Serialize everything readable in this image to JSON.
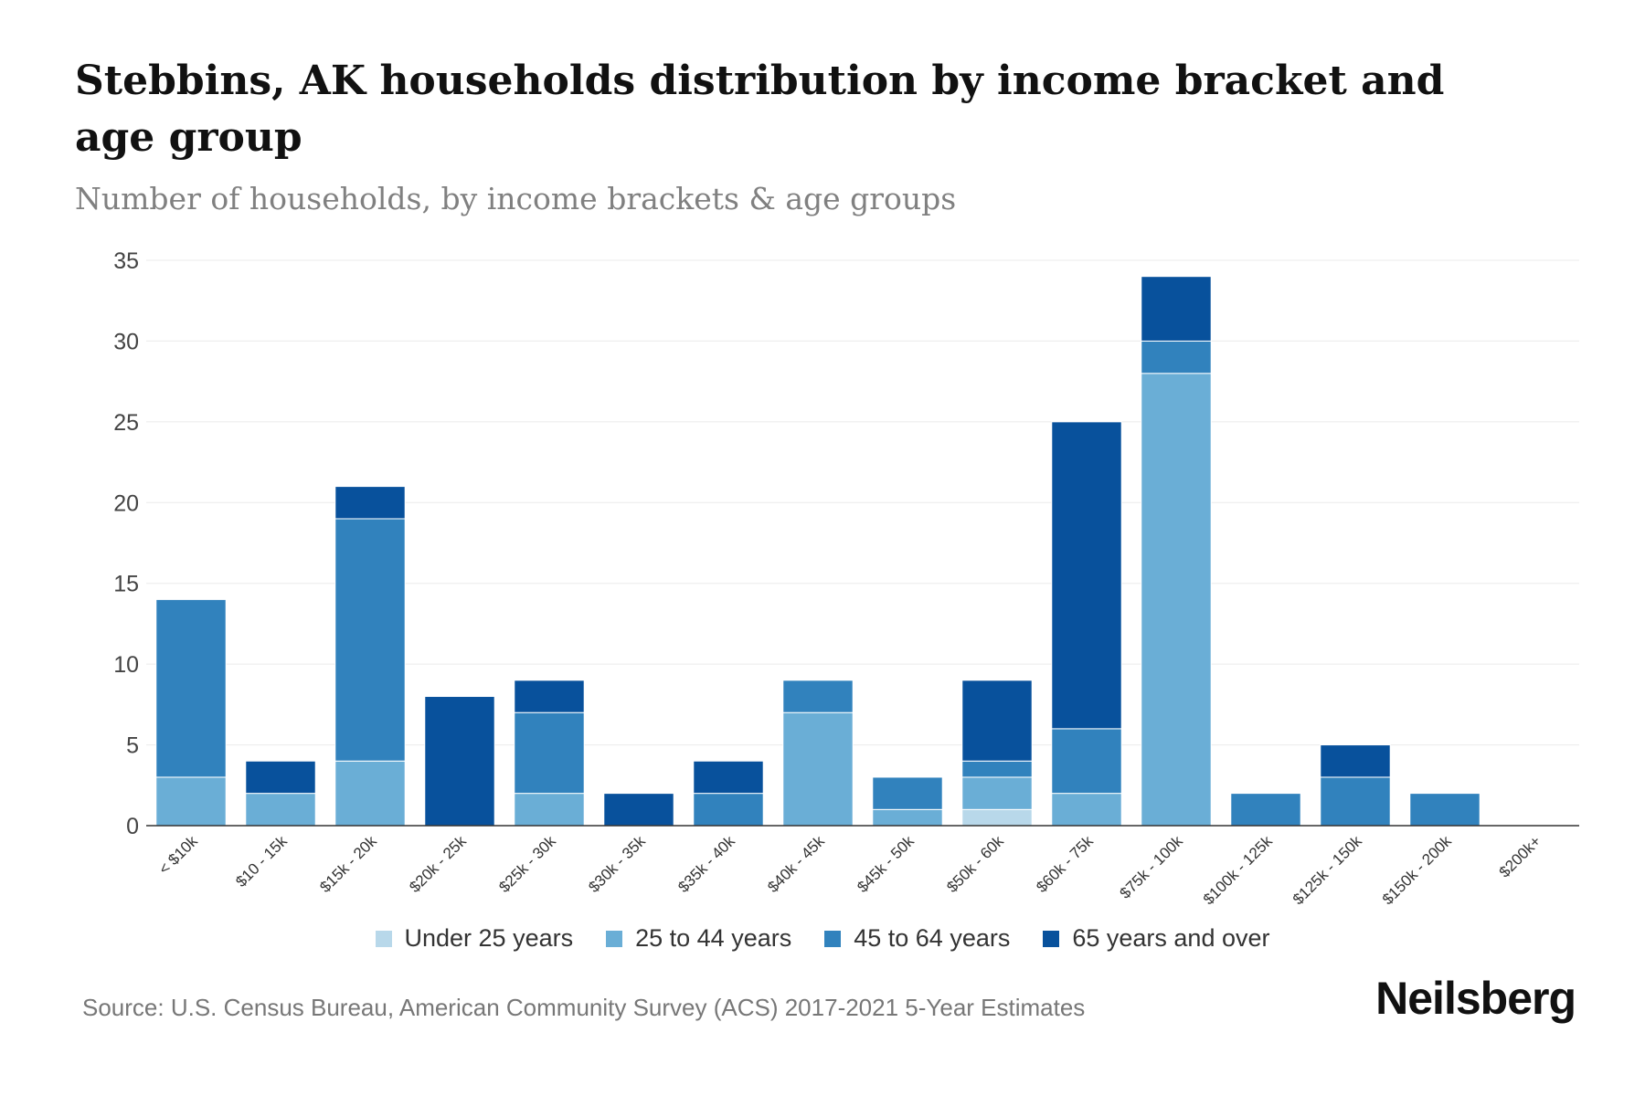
{
  "chart_data": {
    "type": "bar",
    "stacked": true,
    "title": "Stebbins, AK households distribution by income bracket and age group",
    "subtitle": "Number of households, by income brackets & age groups",
    "xlabel": "",
    "ylabel": "",
    "ylim": [
      0,
      35
    ],
    "yticks": [
      0,
      5,
      10,
      15,
      20,
      25,
      30,
      35
    ],
    "grid": true,
    "legend_position": "bottom",
    "categories": [
      "< $10k",
      "$10 - 15k",
      "$15k - 20k",
      "$20k - 25k",
      "$25k - 30k",
      "$30k - 35k",
      "$35k - 40k",
      "$40k - 45k",
      "$45k - 50k",
      "$50k - 60k",
      "$60k - 75k",
      "$75k - 100k",
      "$100k - 125k",
      "$125k - 150k",
      "$150k - 200k",
      "$200k+"
    ],
    "series": [
      {
        "name": "Under 25 years",
        "color": "#b8d8ea",
        "values": [
          0,
          0,
          0,
          0,
          0,
          0,
          0,
          0,
          0,
          1,
          0,
          0,
          0,
          0,
          0,
          0
        ]
      },
      {
        "name": "25 to 44 years",
        "color": "#6aaed6",
        "values": [
          3,
          2,
          4,
          0,
          2,
          0,
          0,
          7,
          1,
          2,
          2,
          28,
          0,
          0,
          0,
          0
        ]
      },
      {
        "name": "45 to 64 years",
        "color": "#3182bd",
        "values": [
          11,
          0,
          15,
          0,
          5,
          0,
          2,
          2,
          2,
          1,
          4,
          2,
          2,
          3,
          2,
          0
        ]
      },
      {
        "name": "65 years and over",
        "color": "#08519c",
        "values": [
          0,
          2,
          2,
          8,
          2,
          2,
          2,
          0,
          0,
          5,
          19,
          4,
          0,
          2,
          0,
          0
        ]
      }
    ]
  },
  "source": "Source: U.S. Census Bureau, American Community Survey (ACS) 2017-2021 5-Year Estimates",
  "brand": "Neilsberg"
}
